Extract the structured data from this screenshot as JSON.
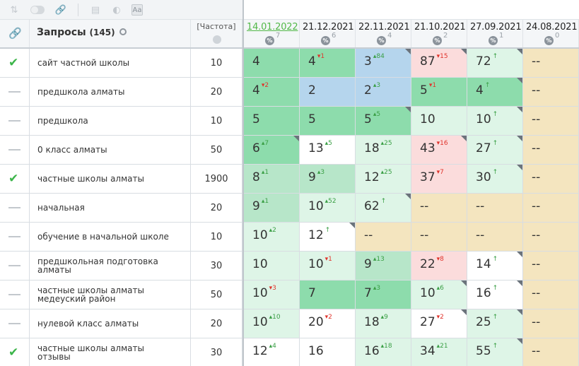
{
  "header": {
    "title": "Запросы",
    "count": "(145)",
    "freq_label": "[Частота]"
  },
  "dates": [
    {
      "date": "14.01.2022",
      "count": "7",
      "active": true
    },
    {
      "date": "21.12.2021",
      "count": "6",
      "active": false
    },
    {
      "date": "22.11.2021",
      "count": "4",
      "active": false
    },
    {
      "date": "21.10.2021",
      "count": "2",
      "active": false
    },
    {
      "date": "27.09.2021",
      "count": "1",
      "active": false
    },
    {
      "date": "24.08.2021",
      "count": "0",
      "active": false
    }
  ],
  "percent_symbol": "%",
  "colors": {
    "dark_green": "#8ddcac",
    "mid_green": "#b7e6c9",
    "light_green": "#def5e7",
    "white": "#ffffff",
    "blue": "#b5d5ed",
    "pink": "#fbdcdc",
    "yellow": "#f4e5bf"
  },
  "rows": [
    {
      "query": "сайт частной школы",
      "freq": "10",
      "status": "check",
      "positions": [
        {
          "v": "4",
          "ch": "",
          "dir": "",
          "bg": "dg",
          "corner": false
        },
        {
          "v": "4",
          "ch": "▾1",
          "dir": "down",
          "bg": "dg",
          "corner": false
        },
        {
          "v": "3",
          "ch": "▴84",
          "dir": "up",
          "bg": "b",
          "corner": true
        },
        {
          "v": "87",
          "ch": "▾15",
          "dir": "down",
          "bg": "p",
          "corner": true
        },
        {
          "v": "72",
          "ch": "↑",
          "dir": "up",
          "bg": "lg",
          "corner": true
        },
        {
          "v": "--",
          "ch": "",
          "dir": "",
          "bg": "y",
          "corner": false
        }
      ]
    },
    {
      "query": "предшкола алматы",
      "freq": "20",
      "status": "dash",
      "positions": [
        {
          "v": "4",
          "ch": "▾2",
          "dir": "down",
          "bg": "dg",
          "corner": false
        },
        {
          "v": "2",
          "ch": "",
          "dir": "",
          "bg": "b",
          "corner": false
        },
        {
          "v": "2",
          "ch": "▴3",
          "dir": "up",
          "bg": "b",
          "corner": false
        },
        {
          "v": "5",
          "ch": "▾1",
          "dir": "down",
          "bg": "dg",
          "corner": false
        },
        {
          "v": "4",
          "ch": "↑",
          "dir": "up",
          "bg": "dg",
          "corner": true
        },
        {
          "v": "--",
          "ch": "",
          "dir": "",
          "bg": "y",
          "corner": false
        }
      ]
    },
    {
      "query": "предшкола",
      "freq": "10",
      "status": "dash",
      "positions": [
        {
          "v": "5",
          "ch": "",
          "dir": "",
          "bg": "dg",
          "corner": false
        },
        {
          "v": "5",
          "ch": "",
          "dir": "",
          "bg": "dg",
          "corner": false
        },
        {
          "v": "5",
          "ch": "▴5",
          "dir": "up",
          "bg": "dg",
          "corner": true
        },
        {
          "v": "10",
          "ch": "",
          "dir": "",
          "bg": "lg",
          "corner": false
        },
        {
          "v": "10",
          "ch": "↑",
          "dir": "up",
          "bg": "lg",
          "corner": true
        },
        {
          "v": "--",
          "ch": "",
          "dir": "",
          "bg": "y",
          "corner": false
        }
      ]
    },
    {
      "query": "0 класс алматы",
      "freq": "50",
      "status": "dash",
      "positions": [
        {
          "v": "6",
          "ch": "▴7",
          "dir": "up",
          "bg": "dg",
          "corner": true
        },
        {
          "v": "13",
          "ch": "▴5",
          "dir": "up",
          "bg": "w",
          "corner": false
        },
        {
          "v": "18",
          "ch": "▴25",
          "dir": "up",
          "bg": "lg",
          "corner": false
        },
        {
          "v": "43",
          "ch": "▾16",
          "dir": "down",
          "bg": "p",
          "corner": true
        },
        {
          "v": "27",
          "ch": "↑",
          "dir": "up",
          "bg": "lg",
          "corner": true
        },
        {
          "v": "--",
          "ch": "",
          "dir": "",
          "bg": "y",
          "corner": false
        }
      ]
    },
    {
      "query": "частные школы алматы",
      "freq": "1900",
      "status": "check",
      "positions": [
        {
          "v": "8",
          "ch": "▴1",
          "dir": "up",
          "bg": "mg",
          "corner": false
        },
        {
          "v": "9",
          "ch": "▴3",
          "dir": "up",
          "bg": "mg",
          "corner": false
        },
        {
          "v": "12",
          "ch": "▴25",
          "dir": "up",
          "bg": "lg",
          "corner": false
        },
        {
          "v": "37",
          "ch": "▾7",
          "dir": "down",
          "bg": "p",
          "corner": false
        },
        {
          "v": "30",
          "ch": "↑",
          "dir": "up",
          "bg": "lg",
          "corner": true
        },
        {
          "v": "--",
          "ch": "",
          "dir": "",
          "bg": "y",
          "corner": false
        }
      ]
    },
    {
      "query": "начальная",
      "freq": "20",
      "status": "dash",
      "positions": [
        {
          "v": "9",
          "ch": "▴1",
          "dir": "up",
          "bg": "mg",
          "corner": false
        },
        {
          "v": "10",
          "ch": "▴52",
          "dir": "up",
          "bg": "lg",
          "corner": false
        },
        {
          "v": "62",
          "ch": "↑",
          "dir": "up",
          "bg": "lg",
          "corner": true
        },
        {
          "v": "--",
          "ch": "",
          "dir": "",
          "bg": "y",
          "corner": false
        },
        {
          "v": "--",
          "ch": "",
          "dir": "",
          "bg": "y",
          "corner": false
        },
        {
          "v": "--",
          "ch": "",
          "dir": "",
          "bg": "y",
          "corner": false
        }
      ]
    },
    {
      "query": "обучение в начальной школе",
      "freq": "10",
      "status": "dash",
      "positions": [
        {
          "v": "10",
          "ch": "▴2",
          "dir": "up",
          "bg": "lg",
          "corner": false
        },
        {
          "v": "12",
          "ch": "↑",
          "dir": "up",
          "bg": "w",
          "corner": true
        },
        {
          "v": "--",
          "ch": "",
          "dir": "",
          "bg": "y",
          "corner": false
        },
        {
          "v": "--",
          "ch": "",
          "dir": "",
          "bg": "y",
          "corner": false
        },
        {
          "v": "--",
          "ch": "",
          "dir": "",
          "bg": "y",
          "corner": false
        },
        {
          "v": "--",
          "ch": "",
          "dir": "",
          "bg": "y",
          "corner": false
        }
      ]
    },
    {
      "query": "предшкольная подготовка алматы",
      "freq": "30",
      "status": "dash",
      "positions": [
        {
          "v": "10",
          "ch": "",
          "dir": "",
          "bg": "lg",
          "corner": false
        },
        {
          "v": "10",
          "ch": "▾1",
          "dir": "down",
          "bg": "lg",
          "corner": false
        },
        {
          "v": "9",
          "ch": "▴13",
          "dir": "up",
          "bg": "mg",
          "corner": false
        },
        {
          "v": "22",
          "ch": "▾8",
          "dir": "down",
          "bg": "p",
          "corner": false
        },
        {
          "v": "14",
          "ch": "↑",
          "dir": "up",
          "bg": "w",
          "corner": true
        },
        {
          "v": "--",
          "ch": "",
          "dir": "",
          "bg": "y",
          "corner": false
        }
      ]
    },
    {
      "query": "частные школы алматы медеуский район",
      "freq": "50",
      "status": "dash",
      "positions": [
        {
          "v": "10",
          "ch": "▾3",
          "dir": "down",
          "bg": "lg",
          "corner": false
        },
        {
          "v": "7",
          "ch": "",
          "dir": "",
          "bg": "dg",
          "corner": false
        },
        {
          "v": "7",
          "ch": "▴3",
          "dir": "up",
          "bg": "dg",
          "corner": false
        },
        {
          "v": "10",
          "ch": "▴6",
          "dir": "up",
          "bg": "lg",
          "corner": true
        },
        {
          "v": "16",
          "ch": "↑",
          "dir": "up",
          "bg": "w",
          "corner": true
        },
        {
          "v": "--",
          "ch": "",
          "dir": "",
          "bg": "y",
          "corner": false
        }
      ]
    },
    {
      "query": "нулевой класс алматы",
      "freq": "20",
      "status": "dash",
      "positions": [
        {
          "v": "10",
          "ch": "▴10",
          "dir": "up",
          "bg": "lg",
          "corner": false
        },
        {
          "v": "20",
          "ch": "▾2",
          "dir": "down",
          "bg": "w",
          "corner": false
        },
        {
          "v": "18",
          "ch": "▴9",
          "dir": "up",
          "bg": "lg",
          "corner": false
        },
        {
          "v": "27",
          "ch": "▾2",
          "dir": "down",
          "bg": "w",
          "corner": true
        },
        {
          "v": "25",
          "ch": "↑",
          "dir": "up",
          "bg": "lg",
          "corner": true
        },
        {
          "v": "--",
          "ch": "",
          "dir": "",
          "bg": "y",
          "corner": false
        }
      ]
    },
    {
      "query": "частные школы алматы отзывы",
      "freq": "30",
      "status": "check",
      "positions": [
        {
          "v": "12",
          "ch": "▴4",
          "dir": "up",
          "bg": "w",
          "corner": false
        },
        {
          "v": "16",
          "ch": "",
          "dir": "",
          "bg": "w",
          "corner": false
        },
        {
          "v": "16",
          "ch": "▴18",
          "dir": "up",
          "bg": "lg",
          "corner": false
        },
        {
          "v": "34",
          "ch": "▴21",
          "dir": "up",
          "bg": "lg",
          "corner": false
        },
        {
          "v": "55",
          "ch": "↑",
          "dir": "up",
          "bg": "lg",
          "corner": true
        },
        {
          "v": "--",
          "ch": "",
          "dir": "",
          "bg": "y",
          "corner": false
        }
      ]
    }
  ]
}
